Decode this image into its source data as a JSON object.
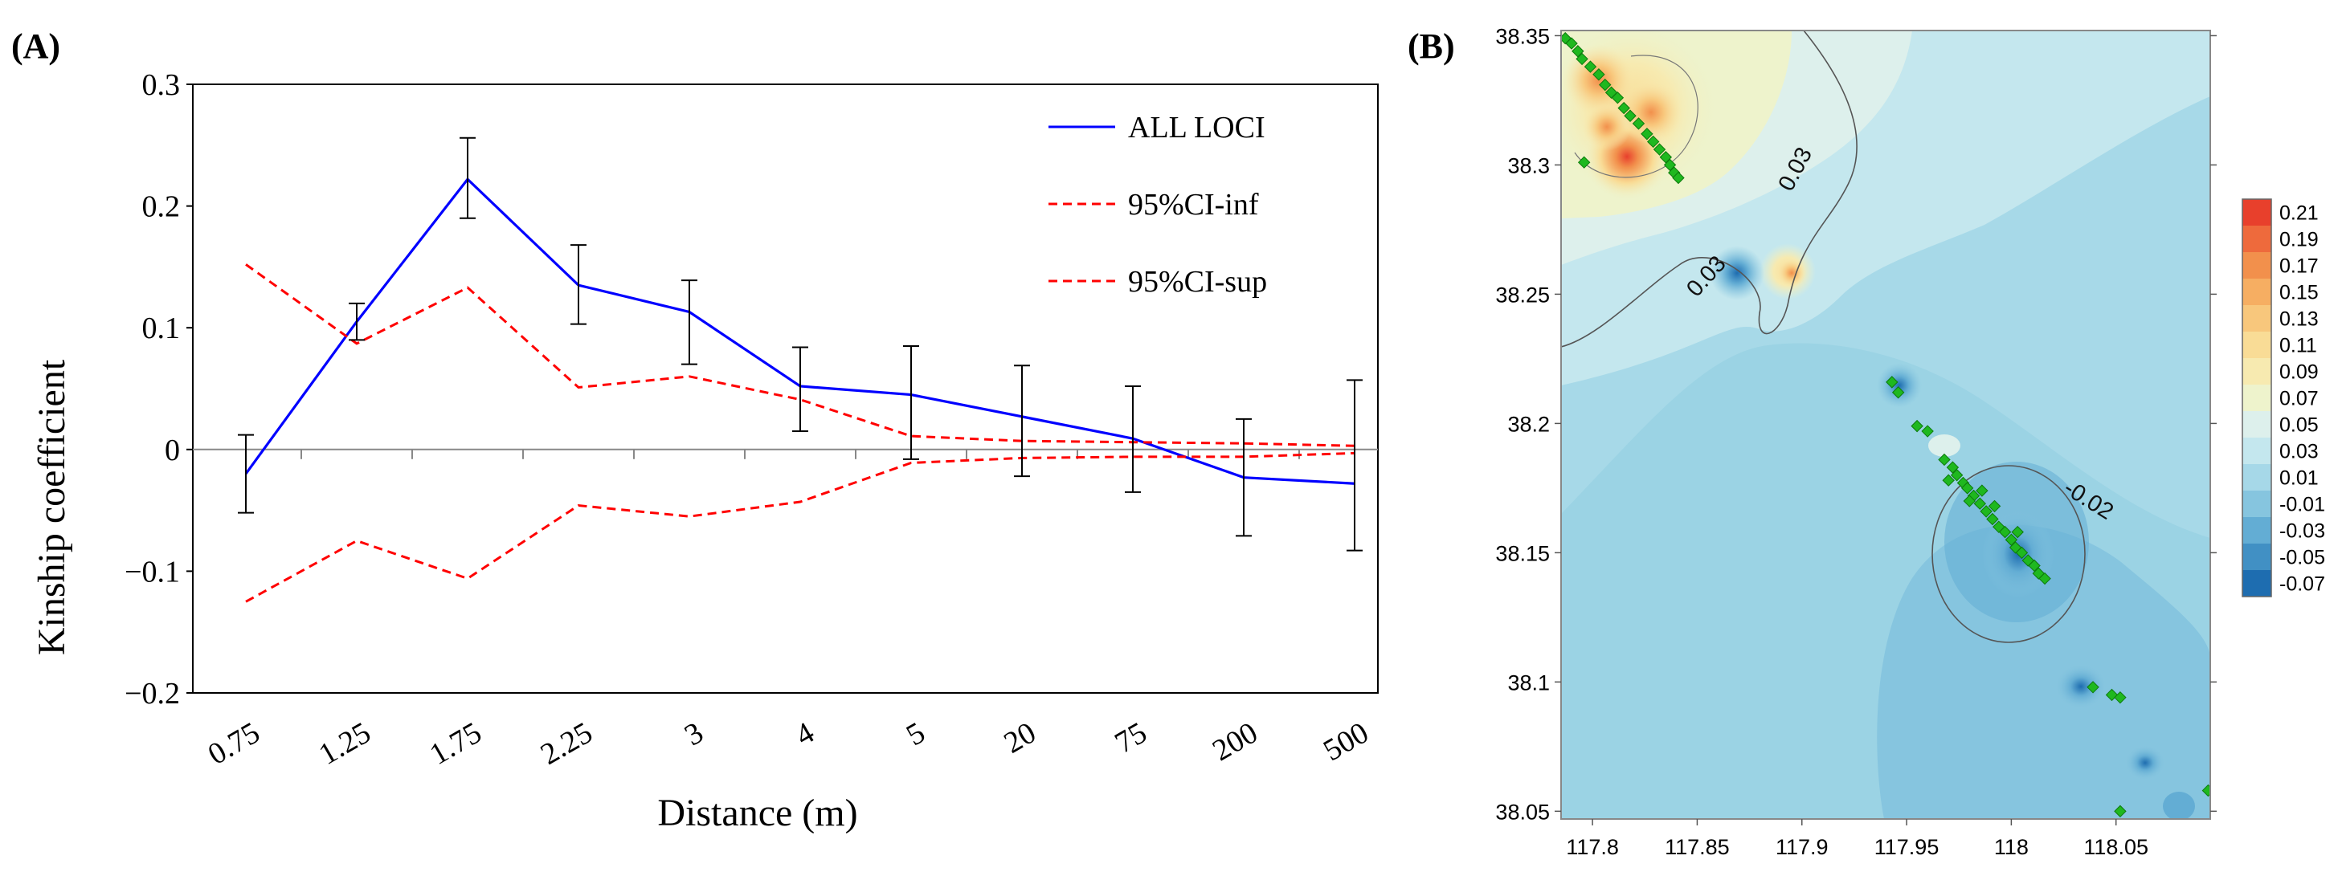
{
  "panel_a_label": "(A)",
  "panel_b_label": "(B)",
  "chart_data": [
    {
      "type": "line",
      "xlabel": "Distance (m)",
      "ylabel": "Kinship coefficient",
      "ylim": [
        -0.2,
        0.3
      ],
      "yticks": [
        "0.3",
        "0.2",
        "0.1",
        "0",
        "−0.1",
        "−0.2"
      ],
      "ytick_values": [
        0.3,
        0.2,
        0.1,
        0,
        -0.1,
        -0.2
      ],
      "categories": [
        "0.75",
        "1.25",
        "1.75",
        "2.25",
        "3",
        "4",
        "5",
        "20",
        "75",
        "200",
        "500"
      ],
      "legend_position": "top-right",
      "series": [
        {
          "name": "ALL LOCI",
          "color": "#0000ff",
          "style": "solid",
          "values": [
            -0.02,
            0.105,
            0.222,
            0.135,
            0.113,
            0.052,
            0.045,
            0.027,
            0.009,
            -0.023,
            -0.028
          ],
          "error_low": [
            -0.052,
            0.09,
            0.19,
            0.103,
            0.07,
            0.015,
            -0.008,
            -0.022,
            -0.035,
            -0.071,
            -0.083
          ],
          "error_high": [
            0.012,
            0.12,
            0.256,
            0.168,
            0.139,
            0.084,
            0.085,
            0.069,
            0.052,
            0.025,
            0.057
          ]
        },
        {
          "name": "95%CI-inf",
          "color": "#ff0000",
          "style": "dashed",
          "values": [
            -0.125,
            -0.075,
            -0.106,
            -0.046,
            -0.055,
            -0.043,
            -0.011,
            -0.007,
            -0.006,
            -0.006,
            -0.003
          ]
        },
        {
          "name": "95%CI-sup",
          "color": "#ff0000",
          "style": "dashed",
          "values": [
            0.152,
            0.087,
            0.133,
            0.051,
            0.06,
            0.041,
            0.011,
            0.007,
            0.006,
            0.005,
            0.003
          ]
        }
      ]
    },
    {
      "type": "contour",
      "xticks": [
        "117.8",
        "117.85",
        "117.9",
        "117.95",
        "118",
        "118.05"
      ],
      "xtick_values": [
        117.8,
        117.85,
        117.9,
        117.95,
        118.0,
        118.05
      ],
      "yticks": [
        "38.35",
        "38.3",
        "38.25",
        "38.2",
        "38.15",
        "38.1",
        "38.05"
      ],
      "ytick_values": [
        38.35,
        38.3,
        38.25,
        38.2,
        38.15,
        38.1,
        38.05
      ],
      "xlim": [
        117.785,
        118.095
      ],
      "ylim": [
        38.047,
        38.352
      ],
      "contour_labels": [
        {
          "text": "0.03",
          "x": 117.9,
          "y": 38.297,
          "angle": -62
        },
        {
          "text": "0.03",
          "x": 117.857,
          "y": 38.255,
          "angle": -48
        },
        {
          "text": "-0.02",
          "x": 118.035,
          "y": 38.168,
          "angle": 32
        }
      ],
      "colorbar": {
        "labels": [
          "0.21",
          "0.19",
          "0.17",
          "0.15",
          "0.13",
          "0.11",
          "0.09",
          "0.07",
          "0.05",
          "0.03",
          "0.01",
          "-0.01",
          "-0.03",
          "-0.05",
          "-0.07"
        ],
        "colors": [
          "#e8402c",
          "#ee6a3c",
          "#f2904c",
          "#f6ae62",
          "#f8c77c",
          "#f9dc96",
          "#f7eab0",
          "#eef3cc",
          "#ddf0ec",
          "#c4e7ee",
          "#a6d8e8",
          "#86c5df",
          "#63add4",
          "#4190c4",
          "#1e6db0"
        ]
      },
      "sample_points": [
        [
          117.787,
          38.349
        ],
        [
          117.79,
          38.347
        ],
        [
          117.793,
          38.344
        ],
        [
          117.795,
          38.341
        ],
        [
          117.799,
          38.338
        ],
        [
          117.803,
          38.335
        ],
        [
          117.806,
          38.331
        ],
        [
          117.809,
          38.328
        ],
        [
          117.812,
          38.326
        ],
        [
          117.815,
          38.322
        ],
        [
          117.818,
          38.319
        ],
        [
          117.822,
          38.316
        ],
        [
          117.826,
          38.312
        ],
        [
          117.829,
          38.309
        ],
        [
          117.832,
          38.306
        ],
        [
          117.835,
          38.303
        ],
        [
          117.837,
          38.3
        ],
        [
          117.839,
          38.297
        ],
        [
          117.841,
          38.295
        ],
        [
          117.796,
          38.301
        ],
        [
          117.943,
          38.216
        ],
        [
          117.946,
          38.212
        ],
        [
          117.955,
          38.199
        ],
        [
          117.96,
          38.197
        ],
        [
          117.968,
          38.186
        ],
        [
          117.972,
          38.183
        ],
        [
          117.974,
          38.18
        ],
        [
          117.977,
          38.177
        ],
        [
          117.979,
          38.175
        ],
        [
          117.982,
          38.172
        ],
        [
          117.985,
          38.169
        ],
        [
          117.988,
          38.166
        ],
        [
          117.991,
          38.163
        ],
        [
          117.994,
          38.16
        ],
        [
          117.997,
          38.158
        ],
        [
          118.0,
          38.155
        ],
        [
          118.002,
          38.152
        ],
        [
          118.005,
          38.15
        ],
        [
          118.008,
          38.147
        ],
        [
          118.011,
          38.145
        ],
        [
          118.013,
          38.142
        ],
        [
          118.016,
          38.14
        ],
        [
          117.98,
          38.17
        ],
        [
          117.986,
          38.174
        ],
        [
          117.992,
          38.168
        ],
        [
          118.003,
          38.158
        ],
        [
          117.97,
          38.178
        ],
        [
          118.039,
          38.098
        ],
        [
          118.048,
          38.095
        ],
        [
          118.052,
          38.094
        ],
        [
          118.052,
          38.05
        ],
        [
          118.094,
          38.058
        ]
      ]
    }
  ]
}
